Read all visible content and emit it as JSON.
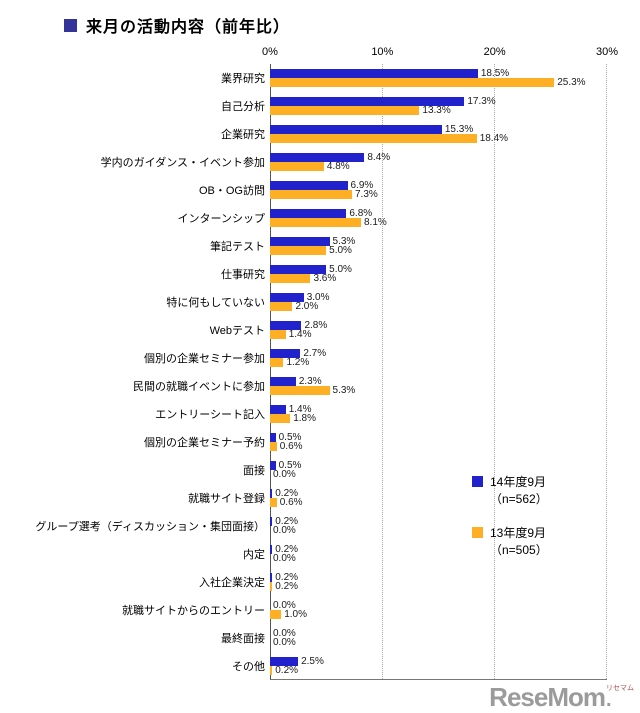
{
  "title": {
    "text": "来月の活動内容（前年比）"
  },
  "colors": {
    "series1": "#2222cc",
    "series2": "#ffaf24",
    "title_bullet": "#333399"
  },
  "legend": [
    {
      "label": "14年度9月",
      "sub": "（n=562）",
      "series": "series1"
    },
    {
      "label": "13年度9月",
      "sub": "（n=505）",
      "series": "series2"
    }
  ],
  "watermark": {
    "text": "ReseMom",
    "ruby": "リセマム",
    "dot": "."
  },
  "chart_data": {
    "type": "bar",
    "orientation": "horizontal",
    "title": "来月の活動内容（前年比）",
    "xlim": [
      0,
      30
    ],
    "xticks": [
      "0%",
      "10%",
      "20%",
      "30%"
    ],
    "grid": true,
    "legend_position": "right-middle",
    "categories": [
      "業界研究",
      "自己分析",
      "企業研究",
      "学内のガイダンス・イベント参加",
      "OB・OG訪問",
      "インターンシップ",
      "筆記テスト",
      "仕事研究",
      "特に何もしていない",
      "Webテスト",
      "個別の企業セミナー参加",
      "民間の就職イベントに参加",
      "エントリーシート記入",
      "個別の企業セミナー予約",
      "面接",
      "就職サイト登録",
      "グループ選考（ディスカッション・集団面接）",
      "内定",
      "入社企業決定",
      "就職サイトからのエントリー",
      "最終面接",
      "その他"
    ],
    "series": [
      {
        "name": "14年度9月（n=562）",
        "color": "#2222cc",
        "values": [
          18.5,
          17.3,
          15.3,
          8.4,
          6.9,
          6.8,
          5.3,
          5.0,
          3.0,
          2.8,
          2.7,
          2.3,
          1.4,
          0.5,
          0.5,
          0.2,
          0.2,
          0.2,
          0.2,
          0.0,
          0.0,
          2.5
        ]
      },
      {
        "name": "13年度9月（n=505）",
        "color": "#ffaf24",
        "values": [
          25.3,
          13.3,
          18.4,
          4.8,
          7.3,
          8.1,
          5.0,
          3.6,
          2.0,
          1.4,
          1.2,
          5.3,
          1.8,
          0.6,
          0.0,
          0.6,
          0.0,
          0.0,
          0.2,
          1.0,
          0.0,
          0.2
        ]
      }
    ]
  }
}
